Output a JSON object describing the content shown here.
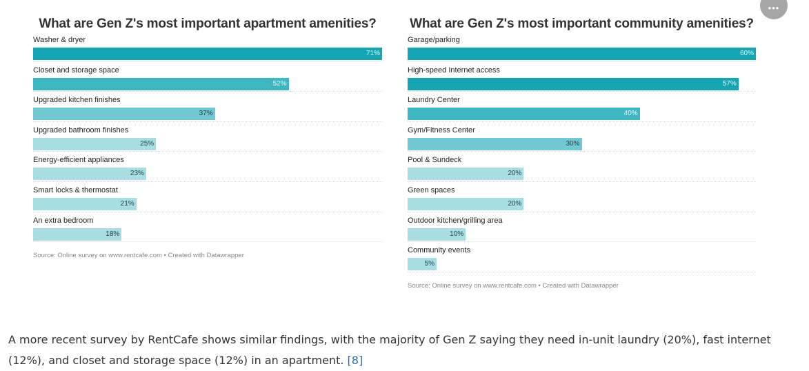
{
  "menu": {
    "icon": "more-dots-icon",
    "label": "•••"
  },
  "chart_data": [
    {
      "type": "bar",
      "orientation": "horizontal",
      "title": "What are Gen Z's most important apartment amenities?",
      "categories": [
        "Washer & dryer",
        "Closet and storage space",
        "Upgraded kitchen finishes",
        "Upgraded bathroom finishes",
        "Energy-efficient appliances",
        "Smart locks & thermostat",
        "An extra bedroom"
      ],
      "values": [
        71,
        52,
        37,
        25,
        23,
        21,
        18
      ],
      "value_labels": [
        "71%",
        "52%",
        "37%",
        "25%",
        "23%",
        "21%",
        "18%"
      ],
      "xlim": [
        0,
        71
      ],
      "source": "Source: Online survey on www.rentcafe.com  • Created with Datawrapper"
    },
    {
      "type": "bar",
      "orientation": "horizontal",
      "title": "What are Gen Z's most important community amenities?",
      "categories": [
        "Garage/parking",
        "High-speed Internet access",
        "Laundry Center",
        "Gym/Fitness Center",
        "Pool & Sundeck",
        "Green spaces",
        "Outdoor kitchen/grilling area",
        "Community events"
      ],
      "values": [
        60,
        57,
        40,
        30,
        20,
        20,
        10,
        5
      ],
      "value_labels": [
        "60%",
        "57%",
        "40%",
        "30%",
        "20%",
        "20%",
        "10%",
        "5%"
      ],
      "xlim": [
        0,
        60
      ],
      "source": "Source: Online survey on www.rentcafe.com • Created with Datawrapper"
    }
  ],
  "body": {
    "text": "A more recent survey by RentCafe shows similar findings, with the majority of Gen Z saying they need in-unit laundry (20%), fast internet (12%), and closet and storage space (12%) in an apartment. ",
    "link": "[8]"
  }
}
